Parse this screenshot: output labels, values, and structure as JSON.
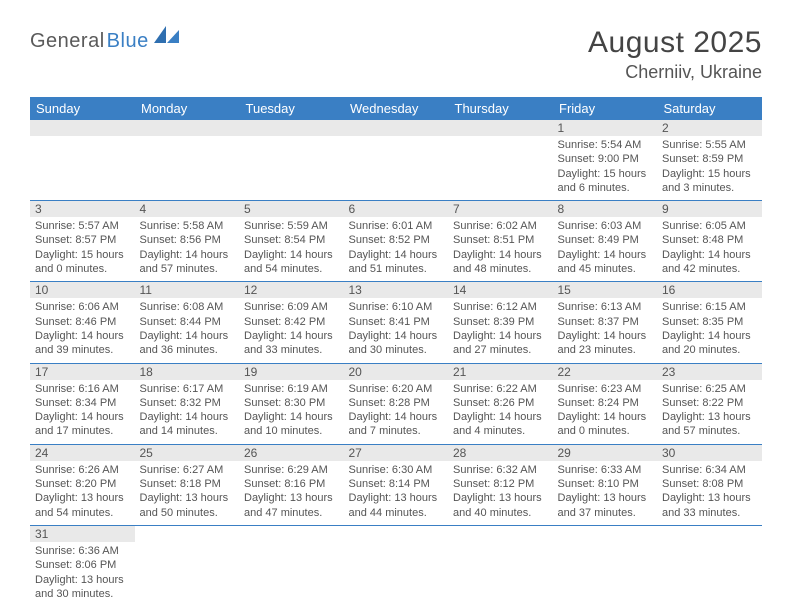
{
  "brand": {
    "part1": "General",
    "part2": "Blue"
  },
  "title": "August 2025",
  "location": "Cherniiv, Ukraine",
  "colors": {
    "header_bg": "#3a7fc4",
    "header_text": "#ffffff",
    "daynum_bg": "#e9e9e9",
    "text": "#555555",
    "border": "#3a7fc4",
    "page_bg": "#ffffff"
  },
  "fonts": {
    "title_size": 30,
    "location_size": 18,
    "header_size": 13,
    "daynum_size": 12,
    "info_size": 11
  },
  "columns": [
    "Sunday",
    "Monday",
    "Tuesday",
    "Wednesday",
    "Thursday",
    "Friday",
    "Saturday"
  ],
  "weeks": [
    [
      null,
      null,
      null,
      null,
      null,
      {
        "n": "1",
        "sr": "5:54 AM",
        "ss": "9:00 PM",
        "dl": "15 hours and 6 minutes."
      },
      {
        "n": "2",
        "sr": "5:55 AM",
        "ss": "8:59 PM",
        "dl": "15 hours and 3 minutes."
      }
    ],
    [
      {
        "n": "3",
        "sr": "5:57 AM",
        "ss": "8:57 PM",
        "dl": "15 hours and 0 minutes."
      },
      {
        "n": "4",
        "sr": "5:58 AM",
        "ss": "8:56 PM",
        "dl": "14 hours and 57 minutes."
      },
      {
        "n": "5",
        "sr": "5:59 AM",
        "ss": "8:54 PM",
        "dl": "14 hours and 54 minutes."
      },
      {
        "n": "6",
        "sr": "6:01 AM",
        "ss": "8:52 PM",
        "dl": "14 hours and 51 minutes."
      },
      {
        "n": "7",
        "sr": "6:02 AM",
        "ss": "8:51 PM",
        "dl": "14 hours and 48 minutes."
      },
      {
        "n": "8",
        "sr": "6:03 AM",
        "ss": "8:49 PM",
        "dl": "14 hours and 45 minutes."
      },
      {
        "n": "9",
        "sr": "6:05 AM",
        "ss": "8:48 PM",
        "dl": "14 hours and 42 minutes."
      }
    ],
    [
      {
        "n": "10",
        "sr": "6:06 AM",
        "ss": "8:46 PM",
        "dl": "14 hours and 39 minutes."
      },
      {
        "n": "11",
        "sr": "6:08 AM",
        "ss": "8:44 PM",
        "dl": "14 hours and 36 minutes."
      },
      {
        "n": "12",
        "sr": "6:09 AM",
        "ss": "8:42 PM",
        "dl": "14 hours and 33 minutes."
      },
      {
        "n": "13",
        "sr": "6:10 AM",
        "ss": "8:41 PM",
        "dl": "14 hours and 30 minutes."
      },
      {
        "n": "14",
        "sr": "6:12 AM",
        "ss": "8:39 PM",
        "dl": "14 hours and 27 minutes."
      },
      {
        "n": "15",
        "sr": "6:13 AM",
        "ss": "8:37 PM",
        "dl": "14 hours and 23 minutes."
      },
      {
        "n": "16",
        "sr": "6:15 AM",
        "ss": "8:35 PM",
        "dl": "14 hours and 20 minutes."
      }
    ],
    [
      {
        "n": "17",
        "sr": "6:16 AM",
        "ss": "8:34 PM",
        "dl": "14 hours and 17 minutes."
      },
      {
        "n": "18",
        "sr": "6:17 AM",
        "ss": "8:32 PM",
        "dl": "14 hours and 14 minutes."
      },
      {
        "n": "19",
        "sr": "6:19 AM",
        "ss": "8:30 PM",
        "dl": "14 hours and 10 minutes."
      },
      {
        "n": "20",
        "sr": "6:20 AM",
        "ss": "8:28 PM",
        "dl": "14 hours and 7 minutes."
      },
      {
        "n": "21",
        "sr": "6:22 AM",
        "ss": "8:26 PM",
        "dl": "14 hours and 4 minutes."
      },
      {
        "n": "22",
        "sr": "6:23 AM",
        "ss": "8:24 PM",
        "dl": "14 hours and 0 minutes."
      },
      {
        "n": "23",
        "sr": "6:25 AM",
        "ss": "8:22 PM",
        "dl": "13 hours and 57 minutes."
      }
    ],
    [
      {
        "n": "24",
        "sr": "6:26 AM",
        "ss": "8:20 PM",
        "dl": "13 hours and 54 minutes."
      },
      {
        "n": "25",
        "sr": "6:27 AM",
        "ss": "8:18 PM",
        "dl": "13 hours and 50 minutes."
      },
      {
        "n": "26",
        "sr": "6:29 AM",
        "ss": "8:16 PM",
        "dl": "13 hours and 47 minutes."
      },
      {
        "n": "27",
        "sr": "6:30 AM",
        "ss": "8:14 PM",
        "dl": "13 hours and 44 minutes."
      },
      {
        "n": "28",
        "sr": "6:32 AM",
        "ss": "8:12 PM",
        "dl": "13 hours and 40 minutes."
      },
      {
        "n": "29",
        "sr": "6:33 AM",
        "ss": "8:10 PM",
        "dl": "13 hours and 37 minutes."
      },
      {
        "n": "30",
        "sr": "6:34 AM",
        "ss": "8:08 PM",
        "dl": "13 hours and 33 minutes."
      }
    ],
    [
      {
        "n": "31",
        "sr": "6:36 AM",
        "ss": "8:06 PM",
        "dl": "13 hours and 30 minutes."
      },
      null,
      null,
      null,
      null,
      null,
      null
    ]
  ],
  "labels": {
    "sunrise": "Sunrise:",
    "sunset": "Sunset:",
    "daylight": "Daylight:"
  }
}
